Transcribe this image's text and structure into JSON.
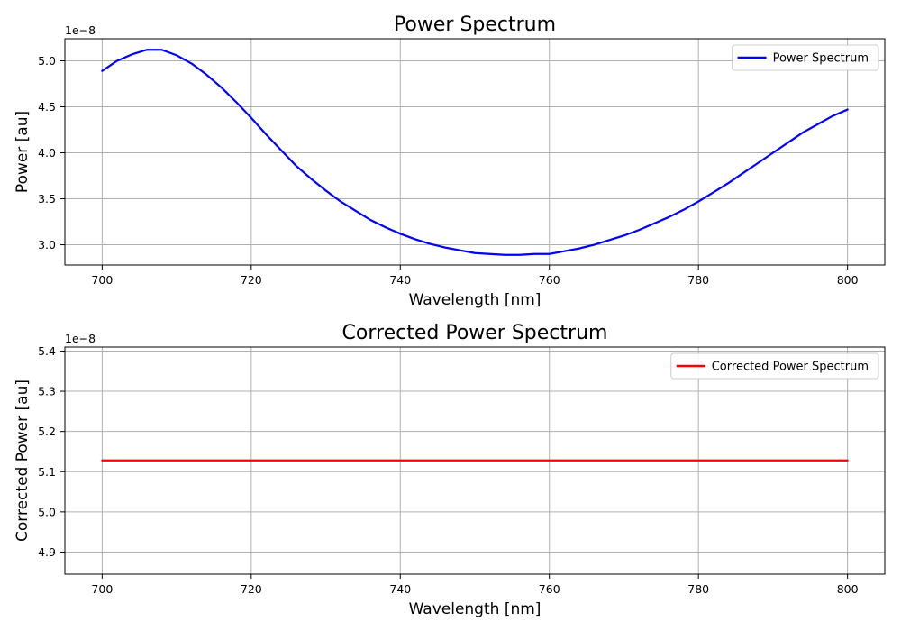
{
  "chart_data": [
    {
      "type": "line",
      "title": "Power Spectrum",
      "xlabel": "Wavelength [nm]",
      "ylabel": "Power [au]",
      "y_offset_label": "1e−8",
      "xlim": [
        695,
        805
      ],
      "ylim": [
        2.78,
        5.24
      ],
      "x_ticks": [
        700,
        720,
        740,
        760,
        780,
        800
      ],
      "x_tick_labels": [
        "700",
        "720",
        "740",
        "760",
        "780",
        "800"
      ],
      "y_ticks": [
        3.0,
        3.5,
        4.0,
        4.5,
        5.0
      ],
      "y_tick_labels": [
        "3.0",
        "3.5",
        "4.0",
        "4.5",
        "5.0"
      ],
      "grid": true,
      "legend_position": "top-right",
      "series": [
        {
          "name": "Power Spectrum",
          "color": "#0000ff",
          "x": [
            700,
            702,
            704,
            706,
            708,
            710,
            712,
            714,
            716,
            718,
            720,
            722,
            724,
            726,
            728,
            730,
            732,
            734,
            736,
            738,
            740,
            742,
            744,
            746,
            748,
            750,
            752,
            754,
            756,
            758,
            760,
            762,
            764,
            766,
            768,
            770,
            772,
            774,
            776,
            778,
            780,
            782,
            784,
            786,
            788,
            790,
            792,
            794,
            796,
            798,
            800
          ],
          "y": [
            4.89,
            5.0,
            5.07,
            5.12,
            5.12,
            5.06,
            4.97,
            4.85,
            4.71,
            4.55,
            4.38,
            4.2,
            4.03,
            3.86,
            3.72,
            3.59,
            3.47,
            3.37,
            3.27,
            3.19,
            3.12,
            3.06,
            3.01,
            2.97,
            2.94,
            2.91,
            2.9,
            2.89,
            2.89,
            2.9,
            2.9,
            2.93,
            2.96,
            3.0,
            3.05,
            3.1,
            3.16,
            3.23,
            3.3,
            3.38,
            3.47,
            3.57,
            3.67,
            3.78,
            3.89,
            4.0,
            4.11,
            4.22,
            4.31,
            4.4,
            4.47
          ]
        }
      ]
    },
    {
      "type": "line",
      "title": "Corrected Power Spectrum",
      "xlabel": "Wavelength [nm]",
      "ylabel": "Corrected Power [au]",
      "y_offset_label": "1e−8",
      "xlim": [
        695,
        805
      ],
      "ylim": [
        4.845,
        5.41
      ],
      "x_ticks": [
        700,
        720,
        740,
        760,
        780,
        800
      ],
      "x_tick_labels": [
        "700",
        "720",
        "740",
        "760",
        "780",
        "800"
      ],
      "y_ticks": [
        4.9,
        5.0,
        5.1,
        5.2,
        5.3,
        5.4
      ],
      "y_tick_labels": [
        "4.9",
        "5.0",
        "5.1",
        "5.2",
        "5.3",
        "5.4"
      ],
      "grid": true,
      "legend_position": "top-right",
      "series": [
        {
          "name": "Corrected Power Spectrum",
          "color": "#ff0000",
          "x": [
            700,
            800
          ],
          "y": [
            5.128,
            5.128
          ]
        }
      ]
    }
  ]
}
